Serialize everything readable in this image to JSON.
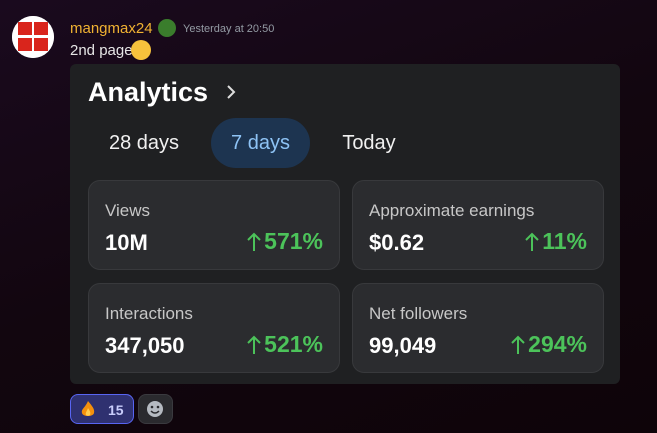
{
  "message": {
    "username": "mangmax24",
    "timestamp": "Yesterday at 20:50",
    "text": "2nd page"
  },
  "analytics": {
    "title": "Analytics",
    "tabs": [
      "28 days",
      "7 days",
      "Today"
    ],
    "cards": [
      {
        "label": "Views",
        "value": "10M",
        "change": "571%"
      },
      {
        "label": "Approximate earnings",
        "value": "$0.62",
        "change": "11%"
      },
      {
        "label": "Interactions",
        "value": "347,050",
        "change": "521%"
      },
      {
        "label": "Net followers",
        "value": "99,049",
        "change": "294%"
      }
    ]
  },
  "reactions": [
    {
      "count": "15"
    }
  ]
}
